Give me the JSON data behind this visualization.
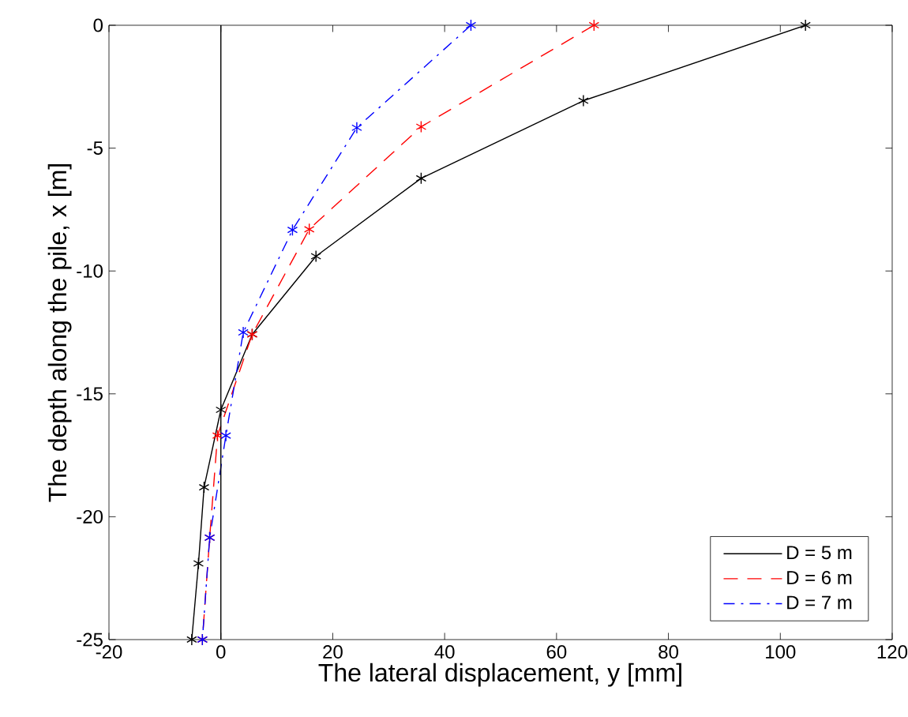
{
  "chart_data": {
    "type": "line",
    "xlabel": "The lateral displacement, y [mm]",
    "ylabel": "The depth along the pile, x [m]",
    "xlim": [
      -20,
      120
    ],
    "xticks": [
      -20,
      0,
      20,
      40,
      60,
      80,
      100,
      120
    ],
    "ylim": [
      -25,
      0
    ],
    "yticks": [
      -25,
      -20,
      -15,
      -10,
      -5,
      0
    ],
    "grid": false,
    "legend": "bottom right",
    "marker": "cross",
    "ref_lines": [
      {
        "axis": "x",
        "value": 0,
        "color": "#000000"
      }
    ],
    "series": [
      {
        "name": "D = 5 m",
        "color": "#000000",
        "line_style": "solid",
        "x": [
          104.5,
          64.8,
          35.8,
          17,
          5.6,
          0,
          -3,
          -4,
          -5.2
        ],
        "values": [
          0,
          -3.07,
          -6.23,
          -9.4,
          -12.58,
          -15.65,
          -18.8,
          -21.9,
          -25
        ]
      },
      {
        "name": "D = 6 m",
        "color": "#ff0000",
        "line_style": "dashed",
        "x": [
          66.7,
          35.8,
          15.8,
          5.6,
          -0.6,
          -2,
          -3.3
        ],
        "values": [
          0,
          -4.13,
          -8.3,
          -12.58,
          -16.7,
          -20.85,
          -25
        ]
      },
      {
        "name": "D = 7 m",
        "color": "#0000ff",
        "line_style": "dashdot",
        "x": [
          44.7,
          24.3,
          12.8,
          4,
          0.9,
          -2,
          -3.3
        ],
        "values": [
          0,
          -4.17,
          -8.33,
          -12.5,
          -16.7,
          -20.85,
          -25
        ]
      }
    ]
  }
}
